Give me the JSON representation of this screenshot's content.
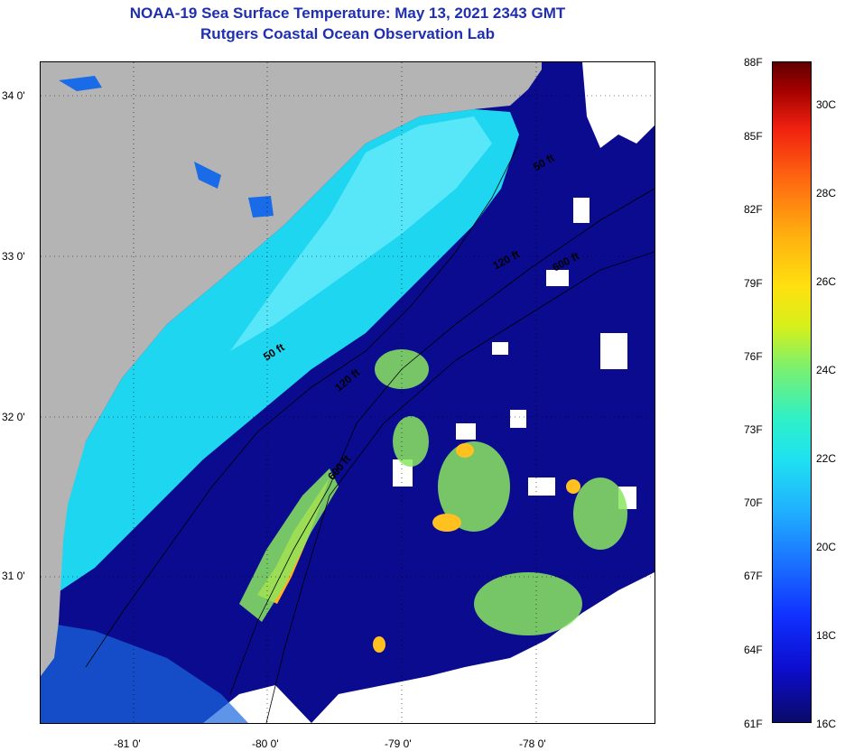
{
  "title": {
    "line1": "NOAA-19 Sea Surface Temperature:  May 13, 2021 2343 GMT",
    "line2": "Rutgers Coastal Ocean Observation Lab"
  },
  "map": {
    "lat_labels": [
      "34 0'",
      "33 0'",
      "32 0'",
      "31 0'"
    ],
    "lon_labels": [
      "-81 0'",
      "-80 0'",
      "-79 0'",
      "-78 0'"
    ],
    "contour_labels": [
      "50 ft",
      "120 ft",
      "600 ft",
      "50 ft",
      "120 ft",
      "600 ft"
    ],
    "colors": {
      "land": "#b4b4b4",
      "deep_water": "#0b0b8f",
      "shelf_water": "#19d2f0",
      "cloud": "#ffffff",
      "gulf_stream_warm": "#ffb020",
      "eddy_green": "#8ae660"
    }
  },
  "colorbar": {
    "fahrenheit_labels": [
      "88F",
      "85F",
      "82F",
      "79F",
      "76F",
      "73F",
      "70F",
      "67F",
      "64F",
      "61F"
    ],
    "celsius_labels": [
      "30C",
      "28C",
      "26C",
      "24C",
      "22C",
      "20C",
      "18C",
      "16C"
    ]
  }
}
